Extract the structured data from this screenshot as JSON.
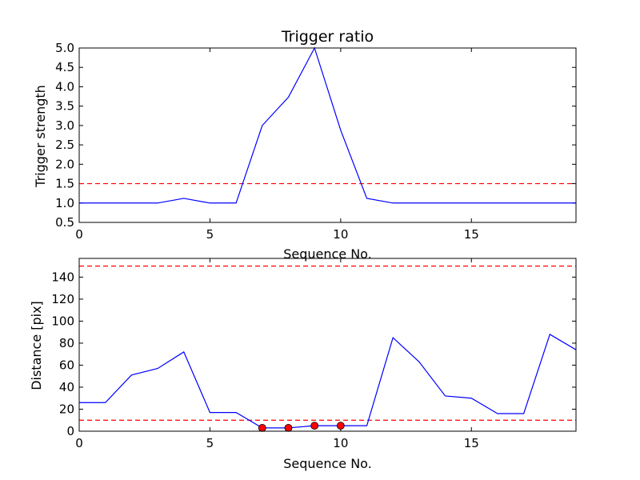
{
  "chart_data": [
    {
      "type": "line",
      "title": "Trigger ratio",
      "xlabel": "Sequence No.",
      "ylabel": "Trigger strength",
      "xlim": [
        0,
        19
      ],
      "ylim": [
        0.5,
        5.0
      ],
      "xticks": [
        0,
        5,
        10,
        15
      ],
      "xtick_labels": [
        "0",
        "5",
        "10",
        "15"
      ],
      "yticks": [
        0.5,
        1.0,
        1.5,
        2.0,
        2.5,
        3.0,
        3.5,
        4.0,
        4.5,
        5.0
      ],
      "ytick_labels": [
        "0.5",
        "1.0",
        "1.5",
        "2.0",
        "2.5",
        "3.0",
        "3.5",
        "4.0",
        "4.5",
        "5.0"
      ],
      "grid": false,
      "series": [
        {
          "color": "#0000ff",
          "x": [
            0,
            1,
            2,
            3,
            4,
            5,
            6,
            7,
            8,
            9,
            10,
            11,
            12,
            13,
            14,
            15,
            16,
            17,
            18,
            19
          ],
          "values": [
            1.0,
            1.0,
            1.0,
            1.0,
            1.12,
            1.0,
            1.0,
            3.0,
            3.73,
            5.0,
            2.88,
            1.12,
            1.0,
            1.0,
            1.0,
            1.0,
            1.0,
            1.0,
            1.0,
            1.0
          ]
        }
      ],
      "hlines": [
        {
          "y": 1.5,
          "color": "#ff0000",
          "style": "dashed"
        }
      ],
      "markers": []
    },
    {
      "type": "line",
      "title": "",
      "xlabel": "Sequence No.",
      "ylabel": "Distance [pix]",
      "xlim": [
        0,
        19
      ],
      "ylim": [
        0,
        157
      ],
      "xticks": [
        0,
        5,
        10,
        15
      ],
      "xtick_labels": [
        "0",
        "5",
        "10",
        "15"
      ],
      "yticks": [
        0,
        20,
        40,
        60,
        80,
        100,
        120,
        140
      ],
      "ytick_labels": [
        "0",
        "20",
        "40",
        "60",
        "80",
        "100",
        "120",
        "140"
      ],
      "grid": false,
      "series": [
        {
          "color": "#0000ff",
          "x": [
            0,
            1,
            2,
            3,
            4,
            5,
            6,
            7,
            8,
            9,
            10,
            11,
            12,
            13,
            14,
            15,
            16,
            17,
            18,
            19
          ],
          "values": [
            26,
            26,
            51,
            57,
            72,
            17,
            17,
            3,
            3,
            5,
            5,
            5,
            85,
            63,
            32,
            30,
            16,
            16,
            88,
            74
          ]
        }
      ],
      "hlines": [
        {
          "y": 150,
          "color": "#ff0000",
          "style": "dashed"
        },
        {
          "y": 10,
          "color": "#ff0000",
          "style": "dashed"
        }
      ],
      "markers": [
        {
          "x": 7,
          "y": 3,
          "color": "#ff0000"
        },
        {
          "x": 8,
          "y": 3,
          "color": "#ff0000"
        },
        {
          "x": 9,
          "y": 5,
          "color": "#ff0000"
        },
        {
          "x": 10,
          "y": 5,
          "color": "#ff0000"
        }
      ]
    }
  ]
}
